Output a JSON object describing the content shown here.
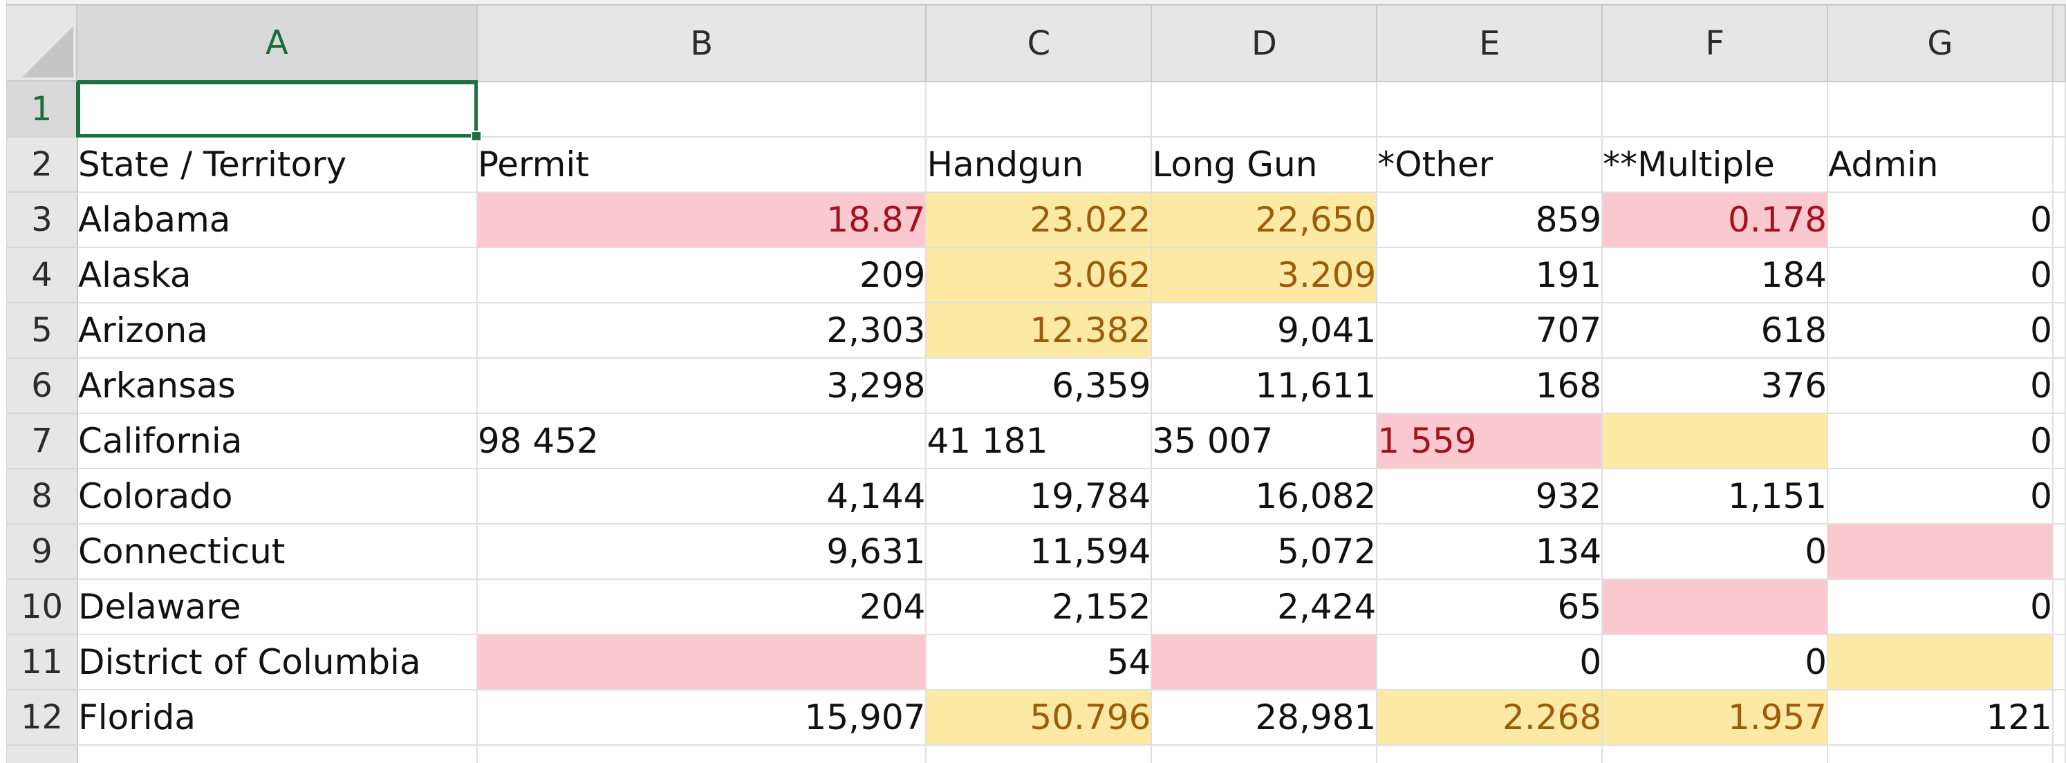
{
  "columns": [
    "A",
    "B",
    "C",
    "D",
    "E",
    "F",
    "G"
  ],
  "active_column": "A",
  "active_row": "1",
  "rows": [
    {
      "n": "1",
      "cells": [
        "",
        "",
        "",
        "",
        "",
        "",
        ""
      ]
    },
    {
      "n": "2",
      "cells": [
        "State / Territory",
        "Permit",
        "Handgun",
        "Long Gun",
        "*Other",
        "**Multiple",
        "Admin"
      ]
    },
    {
      "n": "3",
      "cells": [
        "Alabama",
        "18.87",
        "23.022",
        "22,650",
        "859",
        "0.178",
        "0"
      ]
    },
    {
      "n": "4",
      "cells": [
        "Alaska",
        "209",
        "3.062",
        "3.209",
        "191",
        "184",
        "0"
      ]
    },
    {
      "n": "5",
      "cells": [
        "Arizona",
        "2,303",
        "12.382",
        "9,041",
        "707",
        "618",
        "0"
      ]
    },
    {
      "n": "6",
      "cells": [
        "Arkansas",
        "3,298",
        "6,359",
        "11,611",
        "168",
        "376",
        "0"
      ]
    },
    {
      "n": "7",
      "cells": [
        "California",
        "98 452",
        "41 181",
        "35 007",
        "1 559",
        "",
        "0"
      ]
    },
    {
      "n": "8",
      "cells": [
        "Colorado",
        "4,144",
        "19,784",
        "16,082",
        "932",
        "1,151",
        "0"
      ]
    },
    {
      "n": "9",
      "cells": [
        "Connecticut",
        "9,631",
        "11,594",
        "5,072",
        "134",
        "0",
        ""
      ]
    },
    {
      "n": "10",
      "cells": [
        "Delaware",
        "204",
        "2,152",
        "2,424",
        "65",
        "",
        "0"
      ]
    },
    {
      "n": "11",
      "cells": [
        "District of Columbia",
        "",
        "54",
        "",
        "0",
        "0",
        ""
      ]
    },
    {
      "n": "12",
      "cells": [
        "Florida",
        "15,907",
        "50.796",
        "28,981",
        "2.268",
        "1.957",
        "121"
      ]
    }
  ],
  "colors": {
    "pink_fill": "#f9c9cf",
    "pink_text": "#a3111e",
    "yellow_fill": "#fce9a4",
    "yellow_text": "#9a5d0b",
    "selection": "#1e7145"
  }
}
